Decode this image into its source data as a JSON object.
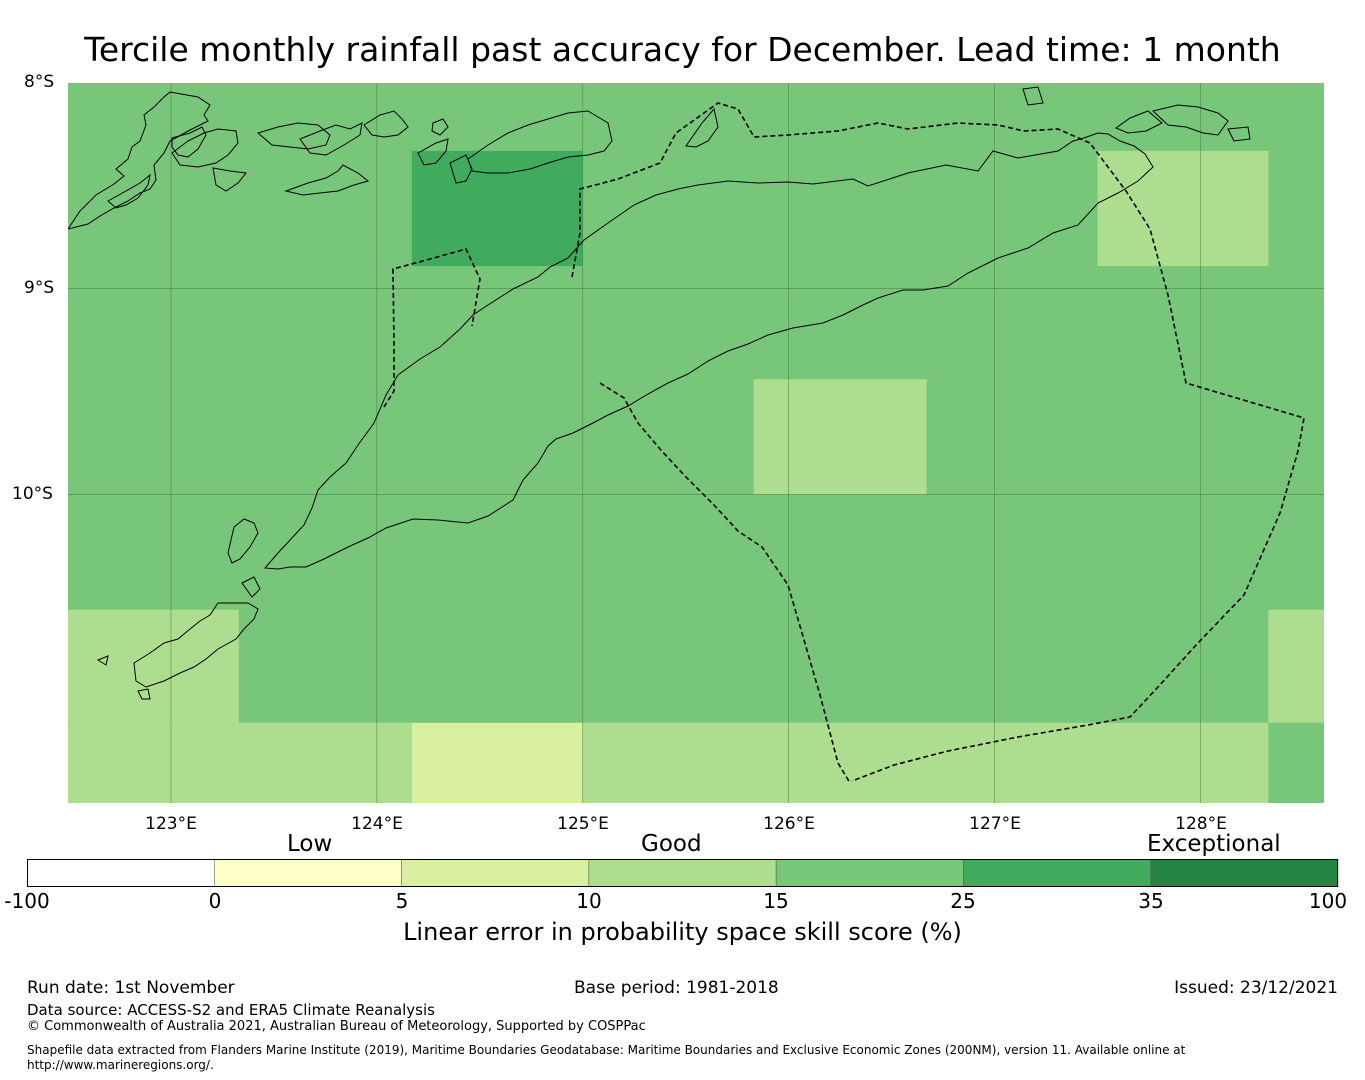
{
  "title": "Tercile monthly rainfall past accuracy for December. Lead time: 1 month",
  "map": {
    "lat_labels": [
      "8°S",
      "9°S",
      "10°S"
    ],
    "lon_labels": [
      "123°E",
      "124°E",
      "125°E",
      "126°E",
      "127°E",
      "128°E"
    ],
    "extent": {
      "lon_min": 122.5,
      "lon_max": 128.6,
      "lat_min": -11.5,
      "lat_max": -8.0
    },
    "grid_lons": [
      123,
      124,
      125,
      126,
      127,
      128
    ],
    "grid_lats": [
      -9,
      -10
    ],
    "cell_size_deg": 0.833,
    "cells": [
      {
        "lon_min": 122.5,
        "lon_max": 128.6,
        "lat_min": -11.5,
        "lat_max": -8.0,
        "skill": 20
      },
      {
        "lon_min": 124.17,
        "lon_max": 125.0,
        "lat_min": -8.89,
        "lat_max": -8.33,
        "skill": 30
      },
      {
        "lon_min": 127.5,
        "lon_max": 128.33,
        "lat_min": -8.89,
        "lat_max": -8.33,
        "skill": 12
      },
      {
        "lon_min": 125.83,
        "lon_max": 126.67,
        "lat_min": -10.0,
        "lat_max": -9.44,
        "skill": 12
      },
      {
        "lon_min": 122.5,
        "lon_max": 123.33,
        "lat_min": -11.11,
        "lat_max": -10.56,
        "skill": 12
      },
      {
        "lon_min": 128.33,
        "lon_max": 128.6,
        "lat_min": -11.11,
        "lat_max": -10.56,
        "skill": 12
      },
      {
        "lon_min": 122.5,
        "lon_max": 124.17,
        "lat_min": -11.5,
        "lat_max": -11.11,
        "skill": 12
      },
      {
        "lon_min": 124.17,
        "lon_max": 125.0,
        "lat_min": -11.5,
        "lat_max": -11.11,
        "skill": 8
      },
      {
        "lon_min": 125.0,
        "lon_max": 128.33,
        "lat_min": -11.5,
        "lat_max": -11.11,
        "skill": 12
      }
    ]
  },
  "colorbar": {
    "boundaries": [
      -100,
      0,
      5,
      10,
      15,
      25,
      35,
      100
    ],
    "tick_labels": [
      "-100",
      "0",
      "5",
      "10",
      "15",
      "25",
      "35",
      "100"
    ],
    "colors": [
      "#ffffff",
      "#ffffcc",
      "#d9f0a3",
      "#addd8e",
      "#78c679",
      "#41ab5d",
      "#238443"
    ],
    "categories": [
      "Low",
      "Good",
      "Exceptional"
    ],
    "label": "Linear error in probability space skill score (%)"
  },
  "footer": {
    "run_date": "Run date: 1st November",
    "base_period": "Base period: 1981-2018",
    "issued": "Issued: 23/12/2021",
    "data_source": "Data source: ACCESS-S2 and ERA5 Climate Reanalysis",
    "copyright": "© Commonwealth of Australia 2021, Australian Bureau of Meteorology, Supported by COSPPac",
    "shapefile_line1": "Shapefile data extracted from Flanders Marine Institute (2019), Maritime Boundaries Geodatabase: Maritime Boundaries and Exclusive Economic Zones (200NM), version 11. Available online at",
    "shapefile_line2": "http://www.marineregions.org/."
  }
}
